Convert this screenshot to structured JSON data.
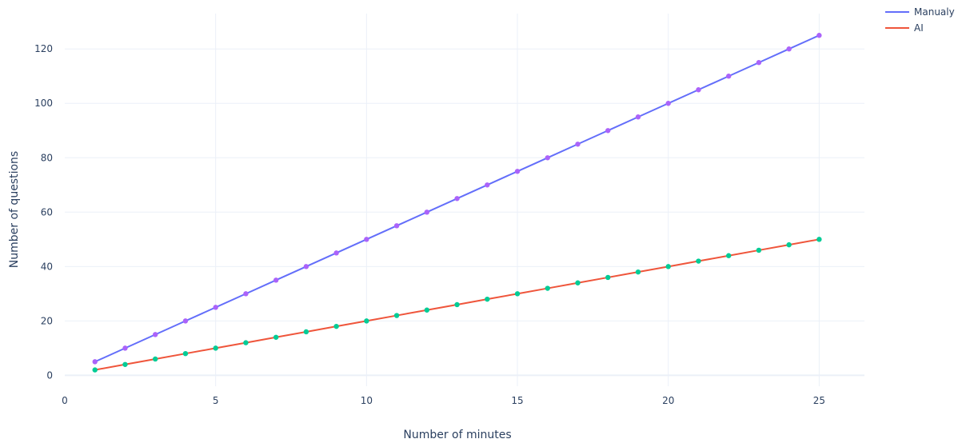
{
  "chart_data": {
    "type": "line",
    "xlabel": "Number of minutes",
    "ylabel": "Number of questions",
    "xlim": [
      0,
      26.5
    ],
    "ylim": [
      -4,
      133
    ],
    "xticks": [
      0,
      5,
      10,
      15,
      20,
      25
    ],
    "yticks": [
      0,
      20,
      40,
      60,
      80,
      100,
      120
    ],
    "grid": true,
    "legend_position": "top-right",
    "x": [
      1,
      2,
      3,
      4,
      5,
      6,
      7,
      8,
      9,
      10,
      11,
      12,
      13,
      14,
      15,
      16,
      17,
      18,
      19,
      20,
      21,
      22,
      23,
      24,
      25
    ],
    "series": [
      {
        "name": "Manualy",
        "line_color": "#636efa",
        "marker_color": "#ab63fa",
        "values": [
          5,
          10,
          15,
          20,
          25,
          30,
          35,
          40,
          45,
          50,
          55,
          60,
          65,
          70,
          75,
          80,
          85,
          90,
          95,
          100,
          105,
          110,
          115,
          120,
          125
        ]
      },
      {
        "name": "AI",
        "line_color": "#ef553b",
        "marker_color": "#00cc96",
        "values": [
          2,
          4,
          6,
          8,
          10,
          12,
          14,
          16,
          18,
          20,
          22,
          24,
          26,
          28,
          30,
          32,
          34,
          36,
          38,
          40,
          42,
          44,
          46,
          48,
          50
        ]
      }
    ]
  }
}
